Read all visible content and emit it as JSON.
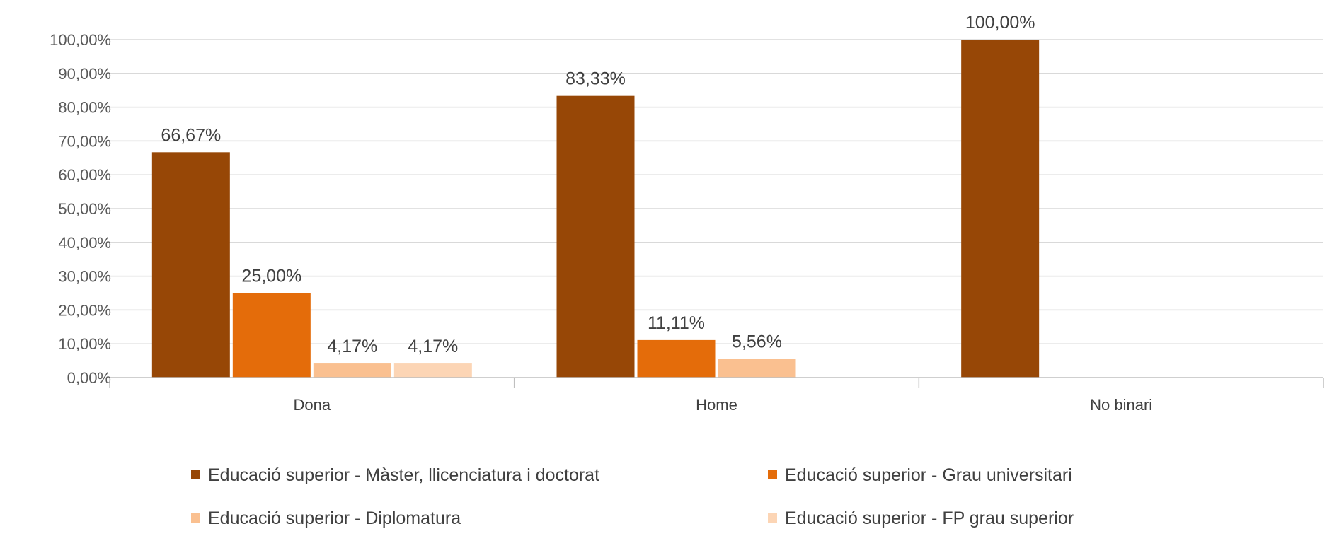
{
  "chart_data": {
    "type": "bar",
    "title": "",
    "xlabel": "",
    "ylabel": "",
    "ylim": [
      0,
      100
    ],
    "y_ticks": [
      "0,00%",
      "10,00%",
      "20,00%",
      "30,00%",
      "40,00%",
      "50,00%",
      "60,00%",
      "70,00%",
      "80,00%",
      "90,00%",
      "100,00%"
    ],
    "categories": [
      "Dona",
      "Home",
      "No binari"
    ],
    "series": [
      {
        "name": "Educació superior - Màster, llicenciatura i doctorat",
        "color": "#974706",
        "values": [
          66.67,
          83.33,
          100.0
        ],
        "labels": [
          "66,67%",
          "83,33%",
          "100,00%"
        ]
      },
      {
        "name": "Educació superior - Grau universitari",
        "color": "#E46C0A",
        "values": [
          25.0,
          11.11,
          null
        ],
        "labels": [
          "25,00%",
          "11,11%",
          ""
        ]
      },
      {
        "name": "Educació superior - Diplomatura",
        "color": "#FAC090",
        "values": [
          4.17,
          5.56,
          null
        ],
        "labels": [
          "4,17%",
          "5,56%",
          ""
        ]
      },
      {
        "name": "Educació superior - FP grau superior",
        "color": "#FCD5B5",
        "values": [
          4.17,
          null,
          null
        ],
        "labels": [
          "4,17%",
          "",
          ""
        ]
      }
    ],
    "grid": true,
    "legend_position": "bottom"
  }
}
